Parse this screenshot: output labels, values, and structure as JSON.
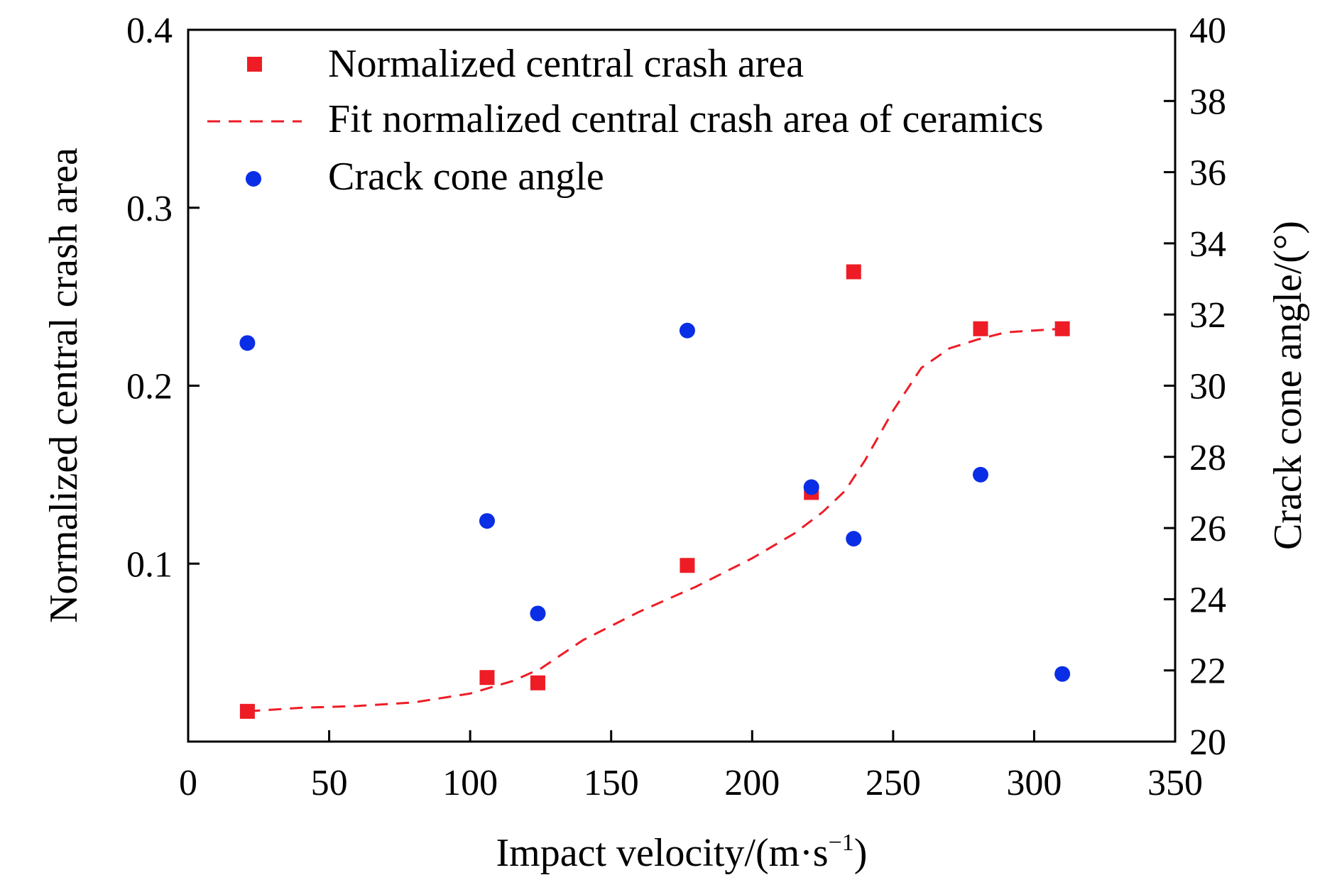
{
  "chart_data": {
    "type": "scatter",
    "x_axis": {
      "label": "Impact velocity/(m·s",
      "label_superscript": "−1",
      "label_suffix": ")",
      "range": [
        0,
        350
      ],
      "ticks": [
        0,
        50,
        100,
        150,
        200,
        250,
        300,
        350
      ]
    },
    "y_axis_left": {
      "label": "Normalized central crash area",
      "range": [
        0,
        0.4
      ],
      "ticks": [
        0.1,
        0.2,
        0.3,
        0.4
      ],
      "tick_labels": [
        "0.1",
        "0.2",
        "0.3",
        "0.4"
      ]
    },
    "y_axis_right": {
      "label": "Crack cone angle/(°)",
      "range": [
        20,
        40
      ],
      "ticks": [
        20,
        22,
        24,
        26,
        28,
        30,
        32,
        34,
        36,
        38,
        40
      ]
    },
    "series": [
      {
        "name": "Normalized central crash area",
        "type": "scatter",
        "marker": "square",
        "axis": "left",
        "color": "#ee1c25",
        "x": [
          21,
          106,
          124,
          177,
          221,
          236,
          281,
          310
        ],
        "y": [
          0.017,
          0.036,
          0.033,
          0.099,
          0.14,
          0.264,
          0.232,
          0.232
        ]
      },
      {
        "name": "Fit normalized central crash area of ceramics",
        "type": "line",
        "style": "dashed",
        "axis": "left",
        "color": "#ee1c25",
        "x": [
          21,
          40,
          60,
          80,
          100,
          115,
          125,
          140,
          160,
          180,
          200,
          215,
          225,
          233,
          240,
          250,
          260,
          270,
          280,
          290,
          300,
          310
        ],
        "y": [
          0.017,
          0.019,
          0.02,
          0.022,
          0.027,
          0.034,
          0.041,
          0.057,
          0.073,
          0.087,
          0.103,
          0.117,
          0.129,
          0.141,
          0.158,
          0.186,
          0.21,
          0.221,
          0.226,
          0.23,
          0.231,
          0.232
        ]
      },
      {
        "name": "Crack cone angle",
        "type": "scatter",
        "marker": "circle",
        "axis": "right",
        "color": "#0a2ee6",
        "x": [
          21,
          106,
          124,
          177,
          221,
          236,
          281,
          310
        ],
        "y": [
          31.2,
          26.2,
          23.6,
          31.55,
          27.15,
          25.7,
          27.5,
          21.9
        ]
      }
    ],
    "legend": {
      "position": "top-left",
      "entries": [
        "Normalized central crash area",
        "Fit normalized central crash area of ceramics",
        "Crack cone angle"
      ]
    },
    "grid": false
  }
}
